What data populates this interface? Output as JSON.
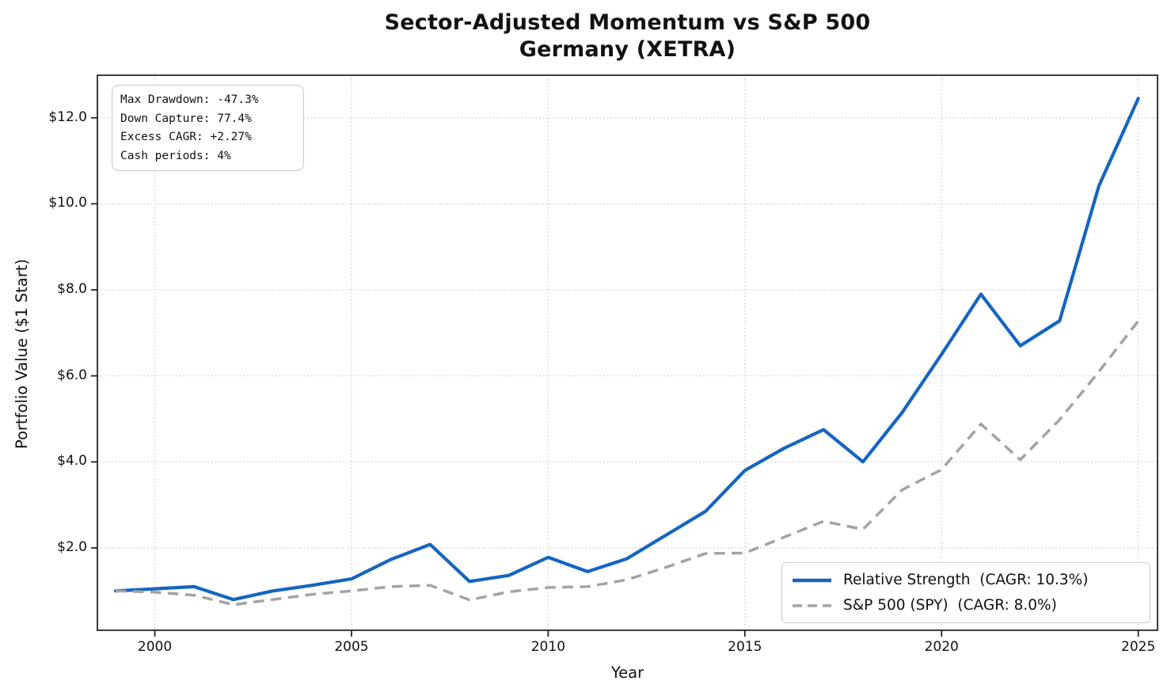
{
  "title": {
    "line1": "Sector-Adjusted Momentum vs S&P 500",
    "line2": "Germany (XETRA)"
  },
  "stats_box": {
    "lines": [
      "Max Drawdown: -47.3%",
      "Down Capture: 77.4%",
      "Excess CAGR: +2.27%",
      "Cash periods: 4%"
    ]
  },
  "axes": {
    "xlabel": "Year",
    "ylabel": "Portfolio Value ($1 Start)"
  },
  "legend": {
    "entries": [
      {
        "label": "Relative Strength  (CAGR: 10.3%)",
        "line_style": "solid",
        "color": "#1565c0"
      },
      {
        "label": "S&P 500 (SPY)  (CAGR: 8.0%)",
        "line_style": "dashed",
        "color": "#a3a3a3"
      }
    ]
  },
  "colors": {
    "relative_strength": "#1565c0",
    "sp500": "#a3a3a3",
    "gridline": "#c9c9c9",
    "spine": "#1a1a1a",
    "text": "#111111"
  },
  "chart_data": {
    "type": "line",
    "title": "Sector-Adjusted Momentum vs S&P 500",
    "subtitle": "Germany (XETRA)",
    "xlabel": "Year",
    "ylabel": "Portfolio Value ($1 Start)",
    "grid": true,
    "legend_position": "lower right",
    "x": [
      1999,
      2000,
      2001,
      2002,
      2003,
      2004,
      2005,
      2006,
      2007,
      2008,
      2009,
      2010,
      2011,
      2012,
      2013,
      2014,
      2015,
      2016,
      2017,
      2018,
      2019,
      2020,
      2021,
      2022,
      2023,
      2024,
      2025
    ],
    "series": [
      {
        "name": "Relative Strength",
        "cagr": "10.3%",
        "color": "#1565c0",
        "line": "solid",
        "values": [
          1.0,
          1.05,
          1.1,
          0.8,
          1.0,
          1.13,
          1.28,
          1.73,
          2.08,
          1.22,
          1.36,
          1.78,
          1.45,
          1.75,
          2.3,
          2.85,
          3.8,
          4.32,
          4.75,
          4.0,
          5.15,
          6.5,
          7.9,
          6.7,
          7.28,
          10.42,
          12.45
        ]
      },
      {
        "name": "S&P 500 (SPY)",
        "cagr": "8.0%",
        "color": "#a3a3a3",
        "line": "dashed",
        "values": [
          1.0,
          0.97,
          0.9,
          0.68,
          0.8,
          0.92,
          1.0,
          1.1,
          1.13,
          0.79,
          0.98,
          1.08,
          1.1,
          1.26,
          1.55,
          1.87,
          1.88,
          2.25,
          2.62,
          2.43,
          3.35,
          3.82,
          4.88,
          4.05,
          4.98,
          6.1,
          7.28
        ]
      }
    ],
    "x_ticks": [
      2000,
      2005,
      2010,
      2015,
      2020,
      2025
    ],
    "x_tick_labels": [
      "2000",
      "2005",
      "2010",
      "2015",
      "2020",
      "2025"
    ],
    "y_ticks": [
      2,
      4,
      6,
      8,
      10,
      12
    ],
    "y_tick_labels": [
      "$2.0",
      "$4.0",
      "$6.0",
      "$8.0",
      "$10.0",
      "$12.0"
    ],
    "xlim": [
      1998.54,
      2025.49
    ],
    "ylim": [
      0.085,
      12.99
    ]
  }
}
